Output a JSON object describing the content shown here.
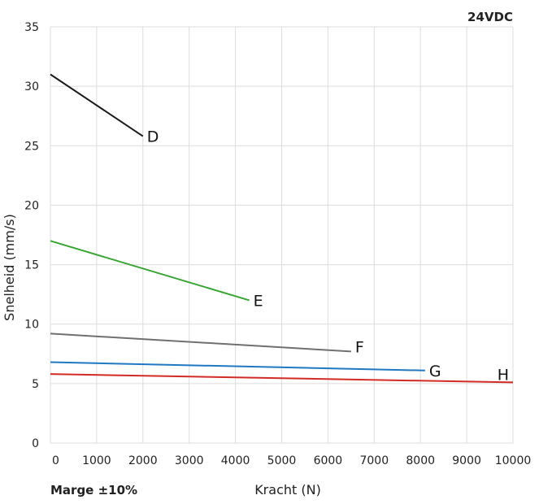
{
  "chart_data": {
    "type": "line",
    "title": "",
    "corner_note": "24VDC",
    "margin_note": "Marge ±10%",
    "xlabel": "Kracht (N)",
    "ylabel": "Snelheid (mm/s)",
    "xlim": [
      0,
      10000
    ],
    "ylim": [
      0,
      35
    ],
    "xticks": [
      0,
      1000,
      2000,
      3000,
      4000,
      5000,
      6000,
      7000,
      8000,
      9000,
      10000
    ],
    "yticks": [
      0,
      5,
      10,
      15,
      20,
      25,
      30,
      35
    ],
    "grid": true,
    "series": [
      {
        "name": "D",
        "color": "#1a1a1a",
        "x": [
          0,
          2000
        ],
        "y": [
          31.0,
          25.8
        ]
      },
      {
        "name": "E",
        "color": "#3aa535",
        "x": [
          0,
          4300
        ],
        "y": [
          17.0,
          12.0
        ]
      },
      {
        "name": "F",
        "color": "#707070",
        "x": [
          0,
          6500
        ],
        "y": [
          9.2,
          7.7
        ]
      },
      {
        "name": "G",
        "color": "#1f78c1",
        "x": [
          0,
          8100
        ],
        "y": [
          6.8,
          6.1
        ]
      },
      {
        "name": "H",
        "color": "#d22b26",
        "x": [
          0,
          10000
        ],
        "y": [
          5.8,
          5.1
        ]
      }
    ]
  }
}
